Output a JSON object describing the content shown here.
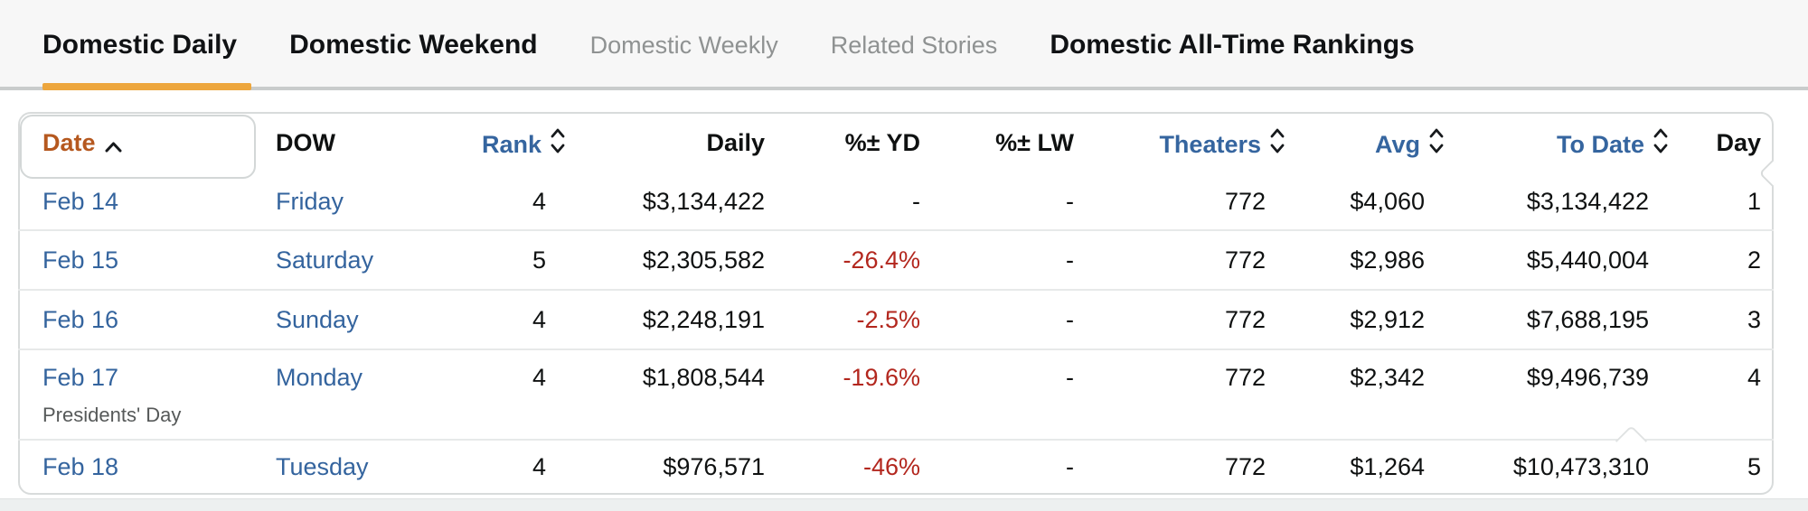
{
  "tabs": [
    {
      "label": "Domestic Daily",
      "state": "active"
    },
    {
      "label": "Domestic Weekend",
      "state": "enabled"
    },
    {
      "label": "Domestic Weekly",
      "state": "disabled"
    },
    {
      "label": "Related Stories",
      "state": "disabled"
    },
    {
      "label": "Domestic All-Time Rankings",
      "state": "enabled"
    }
  ],
  "table": {
    "columns": [
      {
        "label": "Date",
        "align": "left",
        "style": "sorted",
        "sortable": true,
        "sort_direction": "asc"
      },
      {
        "label": "DOW",
        "align": "left",
        "style": "plain",
        "sortable": false
      },
      {
        "label": "Rank",
        "align": "right",
        "style": "blue",
        "sortable": true
      },
      {
        "label": "Daily",
        "align": "right",
        "style": "plain",
        "sortable": false
      },
      {
        "label": "%± YD",
        "align": "right",
        "style": "plain",
        "sortable": false
      },
      {
        "label": "%± LW",
        "align": "right",
        "style": "plain",
        "sortable": false
      },
      {
        "label": "Theaters",
        "align": "right",
        "style": "blue",
        "sortable": true
      },
      {
        "label": "Avg",
        "align": "right",
        "style": "blue",
        "sortable": true
      },
      {
        "label": "To Date",
        "align": "right",
        "style": "blue",
        "sortable": true
      },
      {
        "label": "Day",
        "align": "right",
        "style": "plain",
        "sortable": false
      }
    ],
    "rows": [
      {
        "date": "Feb 14",
        "note": "",
        "dow": "Friday",
        "rank": "4",
        "daily": "$3,134,422",
        "pct_yd": "-",
        "pct_lw": "-",
        "theaters": "772",
        "avg": "$4,060",
        "to_date": "$3,134,422",
        "day": "1"
      },
      {
        "date": "Feb 15",
        "note": "",
        "dow": "Saturday",
        "rank": "5",
        "daily": "$2,305,582",
        "pct_yd": "-26.4%",
        "pct_lw": "-",
        "theaters": "772",
        "avg": "$2,986",
        "to_date": "$5,440,004",
        "day": "2"
      },
      {
        "date": "Feb 16",
        "note": "",
        "dow": "Sunday",
        "rank": "4",
        "daily": "$2,248,191",
        "pct_yd": "-2.5%",
        "pct_lw": "-",
        "theaters": "772",
        "avg": "$2,912",
        "to_date": "$7,688,195",
        "day": "3"
      },
      {
        "date": "Feb 17",
        "note": "Presidents' Day",
        "dow": "Monday",
        "rank": "4",
        "daily": "$1,808,544",
        "pct_yd": "-19.6%",
        "pct_lw": "-",
        "theaters": "772",
        "avg": "$2,342",
        "to_date": "$9,496,739",
        "day": "4"
      },
      {
        "date": "Feb 18",
        "note": "",
        "dow": "Tuesday",
        "rank": "4",
        "daily": "$976,571",
        "pct_yd": "-46%",
        "pct_lw": "-",
        "theaters": "772",
        "avg": "$1,264",
        "to_date": "$10,473,310",
        "day": "5"
      }
    ]
  },
  "colors": {
    "accent_underline": "#eda63d",
    "sorted_header": "#b5581f",
    "link_blue": "#34649e",
    "negative_red": "#b3271e",
    "tab_inactive_gray": "#8f9292",
    "border": "#d8dbdb",
    "tabbar_bg": "#f7f7f7"
  }
}
